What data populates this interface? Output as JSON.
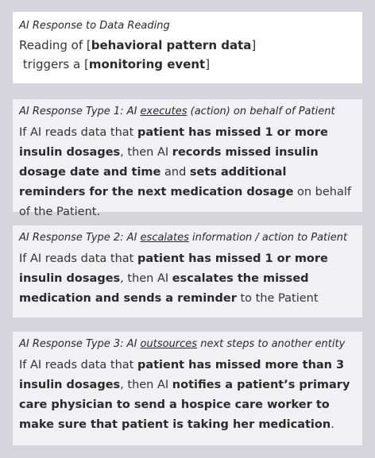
{
  "card0": {
    "heading": "AI Response to Data Reading",
    "l1_pre": "Reading of [",
    "l1_bold": "behavioral pattern data",
    "l1_post": "]",
    "l2_pre": " triggers a [",
    "l2_bold": "monitoring event",
    "l2_post": "]"
  },
  "card1": {
    "h_pre": "AI Response Type 1: AI ",
    "h_u": "executes",
    "h_post": " (action) on behalf of Patient",
    "t1": "If AI reads data that ",
    "b1": "patient has missed 1 or more insulin dosages",
    "t2": ", then AI ",
    "b2": "records missed insulin dosage date and time",
    "t3": " and ",
    "b3": "sets additional reminders for the next medication dosage",
    "t4": " on behalf of the Patient."
  },
  "card2": {
    "h_pre": "AI Response Type 2: AI ",
    "h_u": "escalates",
    "h_post": " information / action to Patient",
    "t1": "If AI reads data that ",
    "b1": "patient has missed 1 or more insulin dosages",
    "t2": ", then AI ",
    "b2": "escalates the missed medication and sends a reminder",
    "t3": " to the Patient"
  },
  "card3": {
    "h_pre": "AI Response Type 3: AI ",
    "h_u": "outsources",
    "h_post": " next steps to another entity",
    "t1": "If AI reads data that ",
    "b1": "patient has missed more than 3 insulin dosages",
    "t2": ", then AI ",
    "b2": "notifies a patient’s primary care physician to send a hospice care worker to make sure that patient is taking her medication",
    "t3": "."
  }
}
